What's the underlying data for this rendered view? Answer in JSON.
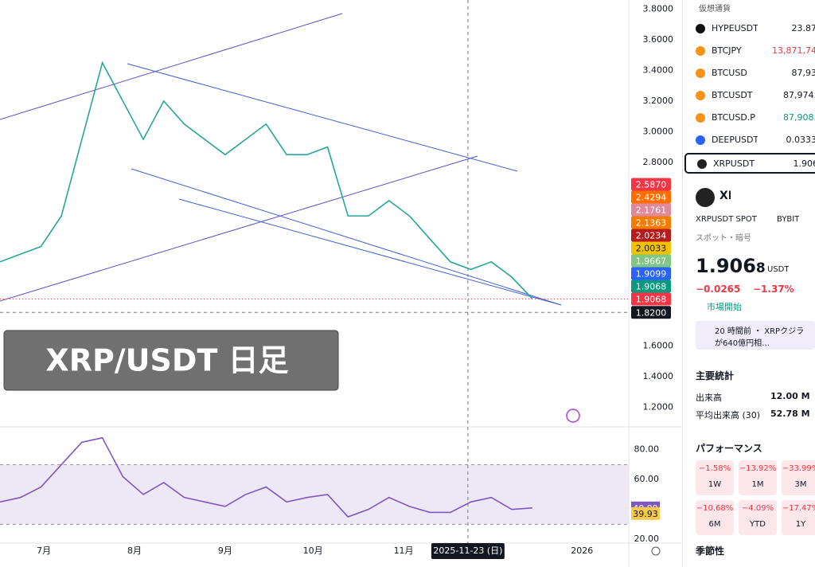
{
  "chart": {
    "type": "line",
    "overlay_title": "XRP/USDT 日足",
    "xlim": [
      "2025-06-16",
      "2026-01-17"
    ],
    "xticks": [
      {
        "value": "2025-07-01",
        "label": "7月"
      },
      {
        "value": "2025-08-01",
        "label": "8月"
      },
      {
        "value": "2025-09-01",
        "label": "9月"
      },
      {
        "value": "2025-10-01",
        "label": "10月"
      },
      {
        "value": "2025-11-01",
        "label": "11月"
      },
      {
        "value": "2026-01-01",
        "label": "2026"
      }
    ],
    "crosshair": {
      "x": {
        "value": "2025-11-23",
        "label": "2025-11-23 (日)"
      },
      "y": {
        "value": 1.82,
        "label": "1.8200"
      }
    },
    "x": [
      "2025-06-16",
      "2025-06-23",
      "2025-06-30",
      "2025-07-07",
      "2025-07-14",
      "2025-07-21",
      "2025-07-28",
      "2025-08-04",
      "2025-08-11",
      "2025-08-18",
      "2025-08-25",
      "2025-09-01",
      "2025-09-08",
      "2025-09-15",
      "2025-09-22",
      "2025-09-29",
      "2025-10-06",
      "2025-10-13",
      "2025-10-20",
      "2025-10-27",
      "2025-11-03",
      "2025-11-10",
      "2025-11-17",
      "2025-11-24",
      "2025-12-01",
      "2025-12-08",
      "2025-12-15"
    ],
    "price": {
      "values": [
        2.15,
        2.2,
        2.25,
        2.45,
        2.95,
        3.45,
        3.2,
        2.95,
        3.2,
        3.05,
        2.95,
        2.85,
        2.95,
        3.05,
        2.85,
        2.85,
        2.9,
        2.45,
        2.45,
        2.55,
        2.45,
        2.3,
        2.15,
        2.1,
        2.15,
        2.05,
        1.91
      ],
      "color": "#26a69a"
    },
    "ylim": [
      1.14,
      3.86
    ],
    "yticks": [
      {
        "value": 3.8,
        "label": "3.8000"
      },
      {
        "value": 3.6,
        "label": "3.6000"
      },
      {
        "value": 3.4,
        "label": "3.4000"
      },
      {
        "value": 3.2,
        "label": "3.2000"
      },
      {
        "value": 3.0,
        "label": "3.0000"
      },
      {
        "value": 2.8,
        "label": "2.8000"
      },
      {
        "value": 1.6,
        "label": "1.6000"
      },
      {
        "value": 1.4,
        "label": "1.4000"
      },
      {
        "value": 1.2,
        "label": "1.2000"
      }
    ],
    "price_badges": [
      {
        "value": 2.587,
        "label": "2.5870",
        "color": "#f23645"
      },
      {
        "value": 2.4294,
        "label": "2.4294",
        "color": "#ff6d00"
      },
      {
        "value": 2.1761,
        "label": "2.1761",
        "color": "#e0899a"
      },
      {
        "value": 2.1363,
        "label": "2.1363",
        "color": "#f57c00"
      },
      {
        "value": 2.0234,
        "label": "2.0234",
        "color": "#b71c1c"
      },
      {
        "value": 2.0033,
        "label": "2.0033",
        "color": "#f2c200"
      },
      {
        "value": 1.9667,
        "label": "1.9667",
        "color": "#81c784"
      },
      {
        "value": 1.9099,
        "label": "1.9099",
        "color": "#2962ff"
      },
      {
        "value": 1.9068,
        "label": "1.9068",
        "color": "#089981"
      },
      {
        "value": 1.9068,
        "label": "1.9068",
        "color": "#f23645"
      }
    ],
    "rsi": {
      "values": [
        45,
        48,
        55,
        70,
        85,
        88,
        62,
        50,
        58,
        48,
        45,
        42,
        50,
        55,
        45,
        48,
        50,
        35,
        40,
        48,
        42,
        38,
        38,
        45,
        48,
        40,
        40.99
      ],
      "color": "#7e57c2",
      "ylim": [
        15,
        90
      ],
      "band": [
        30,
        70
      ],
      "yticks": [
        {
          "value": 80,
          "label": "80.00"
        },
        {
          "value": 60,
          "label": "60.00"
        },
        {
          "value": 20,
          "label": "20.00"
        }
      ],
      "last": {
        "value": 40.99,
        "label": "40.99"
      },
      "ma_last": {
        "value": 39.93,
        "label": "39.93"
      }
    }
  },
  "sidebar": {
    "watchlist": {
      "title": "仮想通貨",
      "rows": [
        {
          "symbol": "HYPEUSDT",
          "price": "23.87",
          "icon": "#111"
        },
        {
          "symbol": "BTCJPY",
          "price": "13,871,74",
          "icon": "#f7931a"
        },
        {
          "symbol": "BTCUSD",
          "price": "87,93",
          "icon": "#f7931a"
        },
        {
          "symbol": "BTCUSDT",
          "price": "87,974.",
          "icon": "#f7931a"
        },
        {
          "symbol": "BTCUSD.P",
          "price": "87,908.",
          "icon": "#f7931a"
        },
        {
          "symbol": "DEEPUSDT",
          "price": "0.0333",
          "icon": "#2962ff"
        },
        {
          "symbol": "XRPUSDT",
          "price": "1.906",
          "icon": "#222"
        }
      ]
    },
    "detail": {
      "ticker": "XR",
      "symbol": "XRPUSDT SPOT",
      "exchange": "BYBIT",
      "category": "スポット・暗号",
      "price_main": "1.906",
      "price_last": "8",
      "currency": "USDT",
      "change": "−0.0265",
      "change_pct": "−1.37%",
      "status": "市場開始",
      "news": "20 時間前 ・ XRPクジラが640億円相…"
    },
    "stats": {
      "title": "主要統計",
      "rows": [
        {
          "label": "出来高",
          "value": "12.00 M"
        },
        {
          "label": "平均出来高 (30)",
          "value": "52.78 M"
        }
      ]
    },
    "performance": {
      "title": "パフォーマンス",
      "cells": [
        {
          "value": "−1.58%",
          "period": "1W"
        },
        {
          "value": "−13.92%",
          "period": "1M"
        },
        {
          "value": "−33.99%",
          "period": "3M"
        },
        {
          "value": "−10.68%",
          "period": "6M"
        },
        {
          "value": "−4.09%",
          "period": "YTD"
        },
        {
          "value": "−17.47%",
          "period": "1Y"
        }
      ]
    },
    "seasonality": "季節性"
  }
}
